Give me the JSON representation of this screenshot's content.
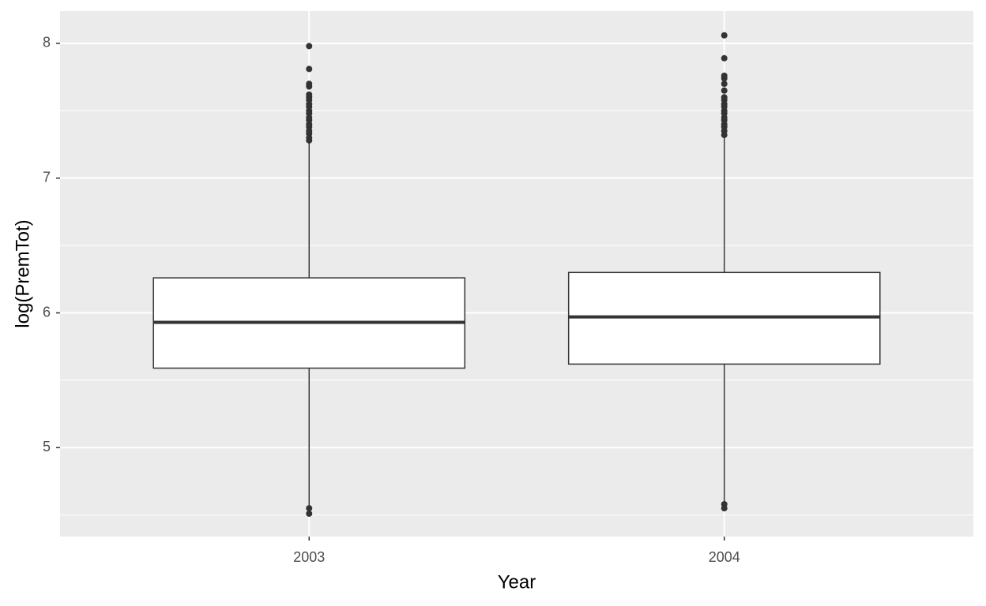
{
  "chart_data": {
    "type": "boxplot",
    "x_label": "Year",
    "y_label": "log(PremTot)",
    "categories": [
      "2003",
      "2004"
    ],
    "boxes": [
      {
        "whislo": 4.57,
        "q1": 5.59,
        "med": 5.93,
        "q3": 6.26,
        "whishi": 7.27,
        "outliers": [
          4.51,
          4.55,
          7.28,
          7.3,
          7.33,
          7.35,
          7.38,
          7.4,
          7.43,
          7.45,
          7.48,
          7.5,
          7.53,
          7.55,
          7.58,
          7.6,
          7.62,
          7.68,
          7.7,
          7.81,
          7.98
        ]
      },
      {
        "whislo": 4.6,
        "q1": 5.62,
        "med": 5.97,
        "q3": 6.3,
        "whishi": 7.3,
        "outliers": [
          4.55,
          4.58,
          7.32,
          7.35,
          7.38,
          7.4,
          7.43,
          7.45,
          7.48,
          7.5,
          7.53,
          7.55,
          7.58,
          7.6,
          7.65,
          7.7,
          7.74,
          7.76,
          7.89,
          8.06
        ]
      }
    ],
    "box_color": "#ffffff",
    "line_color": "#333333",
    "ylim": [
      4.34,
      8.24
    ],
    "yticks": [
      5,
      6,
      7,
      8
    ],
    "minor_yticks": [
      4.5,
      5.5,
      6.5,
      7.5
    ],
    "grid": true,
    "panel_color": "#ebebeb"
  }
}
